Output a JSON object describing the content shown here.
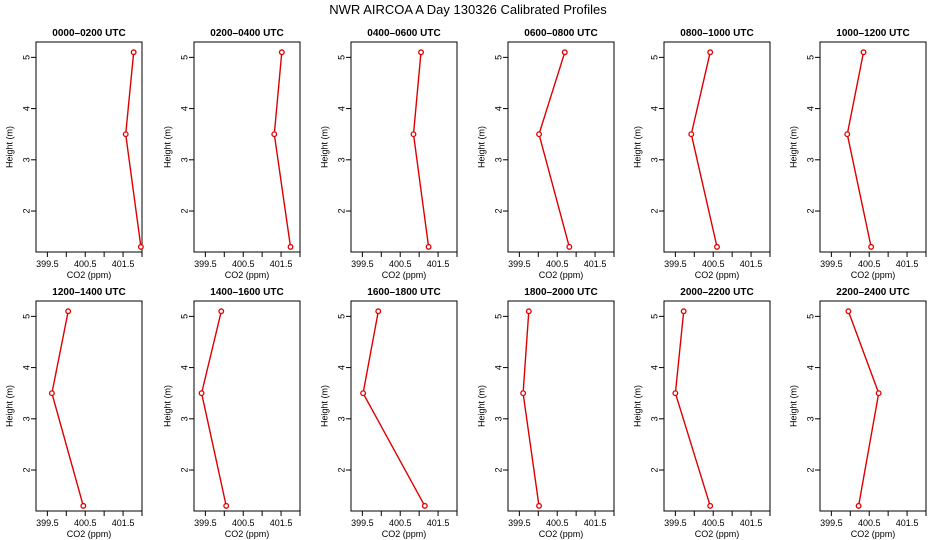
{
  "title": "NWR AIRCOA A  Day 130326  Calibrated Profiles",
  "chart_data": [
    {
      "type": "line",
      "title": "0000–0200 UTC",
      "xlabel": "CO2 (ppm)",
      "ylabel": "Height (m)",
      "xlim": [
        399.2,
        402.0
      ],
      "ylim": [
        1.2,
        5.3
      ],
      "xticks": [
        "399.5",
        "400.5",
        "401.5"
      ],
      "yticks": [
        "2",
        "3",
        "4",
        "5"
      ],
      "x": [
        401.78,
        401.57,
        401.97
      ],
      "y": [
        5.1,
        3.5,
        1.3
      ]
    },
    {
      "type": "line",
      "title": "0200–0400 UTC",
      "xlabel": "CO2 (ppm)",
      "ylabel": "Height (m)",
      "xlim": [
        399.2,
        402.0
      ],
      "ylim": [
        1.2,
        5.3
      ],
      "xticks": [
        "399.5",
        "400.5",
        "401.5"
      ],
      "yticks": [
        "2",
        "3",
        "4",
        "5"
      ],
      "x": [
        401.52,
        401.32,
        401.75
      ],
      "y": [
        5.1,
        3.5,
        1.3
      ]
    },
    {
      "type": "line",
      "title": "0400–0600 UTC",
      "xlabel": "CO2 (ppm)",
      "ylabel": "Height (m)",
      "xlim": [
        399.2,
        402.0
      ],
      "ylim": [
        1.2,
        5.3
      ],
      "xticks": [
        "399.5",
        "400.5",
        "401.5"
      ],
      "yticks": [
        "2",
        "3",
        "4",
        "5"
      ],
      "x": [
        401.05,
        400.85,
        401.25
      ],
      "y": [
        5.1,
        3.5,
        1.3
      ]
    },
    {
      "type": "line",
      "title": "0600–0800 UTC",
      "xlabel": "CO2 (ppm)",
      "ylabel": "Height (m)",
      "xlim": [
        399.2,
        402.0
      ],
      "ylim": [
        1.2,
        5.3
      ],
      "xticks": [
        "399.5",
        "400.5",
        "401.5"
      ],
      "yticks": [
        "2",
        "3",
        "4",
        "5"
      ],
      "x": [
        400.7,
        400.02,
        400.82
      ],
      "y": [
        5.1,
        3.5,
        1.3
      ]
    },
    {
      "type": "line",
      "title": "0800–1000 UTC",
      "xlabel": "CO2 (ppm)",
      "ylabel": "Height (m)",
      "xlim": [
        399.2,
        402.0
      ],
      "ylim": [
        1.2,
        5.3
      ],
      "xticks": [
        "399.5",
        "400.5",
        "401.5"
      ],
      "yticks": [
        "2",
        "3",
        "4",
        "5"
      ],
      "x": [
        400.42,
        399.92,
        400.6
      ],
      "y": [
        5.1,
        3.5,
        1.3
      ]
    },
    {
      "type": "line",
      "title": "1000–1200 UTC",
      "xlabel": "CO2 (ppm)",
      "ylabel": "Height (m)",
      "xlim": [
        399.2,
        402.0
      ],
      "ylim": [
        1.2,
        5.3
      ],
      "xticks": [
        "399.5",
        "400.5",
        "401.5"
      ],
      "yticks": [
        "2",
        "3",
        "4",
        "5"
      ],
      "x": [
        400.35,
        399.92,
        400.55
      ],
      "y": [
        5.1,
        3.5,
        1.3
      ]
    },
    {
      "type": "line",
      "title": "1200–1400 UTC",
      "xlabel": "CO2 (ppm)",
      "ylabel": "Height (m)",
      "xlim": [
        399.2,
        402.0
      ],
      "ylim": [
        1.2,
        5.3
      ],
      "xticks": [
        "399.5",
        "400.5",
        "401.5"
      ],
      "yticks": [
        "2",
        "3",
        "4",
        "5"
      ],
      "x": [
        400.05,
        399.62,
        400.45
      ],
      "y": [
        5.1,
        3.5,
        1.3
      ]
    },
    {
      "type": "line",
      "title": "1400–1600 UTC",
      "xlabel": "CO2 (ppm)",
      "ylabel": "Height (m)",
      "xlim": [
        399.2,
        402.0
      ],
      "ylim": [
        1.2,
        5.3
      ],
      "xticks": [
        "399.5",
        "400.5",
        "401.5"
      ],
      "yticks": [
        "2",
        "3",
        "4",
        "5"
      ],
      "x": [
        399.92,
        399.4,
        400.05
      ],
      "y": [
        5.1,
        3.5,
        1.3
      ]
    },
    {
      "type": "line",
      "title": "1600–1800 UTC",
      "xlabel": "CO2 (ppm)",
      "ylabel": "Height (m)",
      "xlim": [
        399.2,
        402.0
      ],
      "ylim": [
        1.2,
        5.3
      ],
      "xticks": [
        "399.5",
        "400.5",
        "401.5"
      ],
      "yticks": [
        "2",
        "3",
        "4",
        "5"
      ],
      "x": [
        399.92,
        399.52,
        401.15
      ],
      "y": [
        5.1,
        3.5,
        1.3
      ]
    },
    {
      "type": "line",
      "title": "1800–2000 UTC",
      "xlabel": "CO2 (ppm)",
      "ylabel": "Height (m)",
      "xlim": [
        399.2,
        402.0
      ],
      "ylim": [
        1.2,
        5.3
      ],
      "xticks": [
        "399.5",
        "400.5",
        "401.5"
      ],
      "yticks": [
        "2",
        "3",
        "4",
        "5"
      ],
      "x": [
        399.75,
        399.6,
        400.02
      ],
      "y": [
        5.1,
        3.5,
        1.3
      ]
    },
    {
      "type": "line",
      "title": "2000–2200 UTC",
      "xlabel": "CO2 (ppm)",
      "ylabel": "Height (m)",
      "xlim": [
        399.2,
        402.0
      ],
      "ylim": [
        1.2,
        5.3
      ],
      "xticks": [
        "399.5",
        "400.5",
        "401.5"
      ],
      "yticks": [
        "2",
        "3",
        "4",
        "5"
      ],
      "x": [
        399.72,
        399.5,
        400.42
      ],
      "y": [
        5.1,
        3.5,
        1.3
      ]
    },
    {
      "type": "line",
      "title": "2200–2400 UTC",
      "xlabel": "CO2 (ppm)",
      "ylabel": "Height (m)",
      "xlim": [
        399.2,
        402.0
      ],
      "ylim": [
        1.2,
        5.3
      ],
      "xticks": [
        "399.5",
        "400.5",
        "401.5"
      ],
      "yticks": [
        "2",
        "3",
        "4",
        "5"
      ],
      "x": [
        399.95,
        400.75,
        400.22
      ],
      "y": [
        5.1,
        3.5,
        1.3
      ]
    }
  ],
  "colors": {
    "line": "#dd0000",
    "marker": "#dd0000",
    "frame": "#000000",
    "background": "#ffffff"
  },
  "marker": "open-circle"
}
